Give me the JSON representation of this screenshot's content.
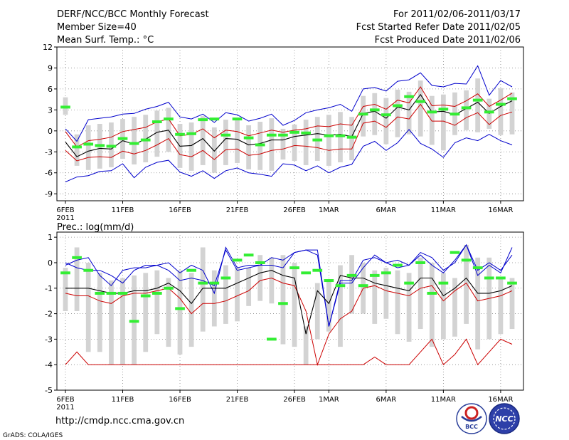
{
  "header": {
    "left_line1": "DERF/NCC/BCC Monthly Forecast",
    "left_line2": "Member Size=40",
    "left_line3": "Mean Surf. Temp.: °C",
    "right_line1": "For 2011/02/06-2011/03/17",
    "right_line2": "Fcst Started Refer Date 2011/02/05",
    "right_line3": "Fcst Produced Date 2011/02/06"
  },
  "footer": {
    "url": "http://cmdp.ncc.cma.gov.cn",
    "credit": "GrADS: COLA/IGES",
    "bcc_logo_text": "BCC",
    "ncc_logo_text": "NCC"
  },
  "colors": {
    "mean": "#000000",
    "spread": "#cc0000",
    "extreme": "#0000cc",
    "box": "#d3d3d3",
    "obs": "#33ee33",
    "grid": "#888888"
  },
  "chart_data": [
    {
      "type": "line",
      "title": "Mean Surf. Temp.: °C",
      "ylim": [
        -10,
        12
      ],
      "yticks": [
        -9,
        -6,
        -3,
        0,
        3,
        6,
        9,
        12
      ],
      "ytick_labels": [
        "-9",
        "-6",
        "-3",
        "0",
        "3",
        "6",
        "9",
        "12"
      ],
      "xticks": [
        0,
        5,
        10,
        15,
        20,
        23,
        28,
        33,
        38
      ],
      "xtick_labels": [
        "6FEB",
        "11FEB",
        "16FEB",
        "21FEB",
        "26FEB",
        "1MAR",
        "6MAR",
        "11MAR",
        "16MAR"
      ],
      "x_year_label": "2011",
      "n_days": 40,
      "series": [
        {
          "name": "max",
          "role": "extreme",
          "values": [
            -7.3,
            -6.6,
            -6.4,
            -5.8,
            -5.7,
            -4.7,
            -6.7,
            -5.2,
            -4.5,
            -4.2,
            -5.9,
            -6.5,
            -5.7,
            -6.8,
            -5.7,
            -5.3,
            -6.0,
            -6.2,
            -6.5,
            -4.7,
            -4.9,
            -5.7,
            -5.0,
            -6.0,
            -5.2,
            -4.8,
            -2.2,
            -1.5,
            -2.8,
            -1.7,
            0.2,
            -1.8,
            -2.6,
            -3.8,
            -1.7,
            -1.0,
            -1.4,
            -0.5,
            -1.4,
            -2.0
          ]
        },
        {
          "name": "upper-max",
          "role": "extreme",
          "values": [
            0.3,
            -1.5,
            1.6,
            1.8,
            2.0,
            2.4,
            2.5,
            3.1,
            3.5,
            4.1,
            2.0,
            1.7,
            2.4,
            1.2,
            2.6,
            2.3,
            1.4,
            1.8,
            2.4,
            0.8,
            1.5,
            2.6,
            3.0,
            3.3,
            3.8,
            2.8,
            6.0,
            6.2,
            5.7,
            7.1,
            7.3,
            8.3,
            6.5,
            6.3,
            6.8,
            6.7,
            9.3,
            5.1,
            7.2,
            6.3
          ]
        },
        {
          "name": "p75",
          "role": "spread",
          "values": [
            -0.1,
            -2.3,
            -1.4,
            -1.2,
            -0.9,
            -0.1,
            0.2,
            0.5,
            1.3,
            1.7,
            -0.7,
            -0.5,
            0.3,
            -1.0,
            0.1,
            -0.1,
            -0.7,
            -0.3,
            0.1,
            -0.2,
            0.1,
            0.3,
            0.7,
            0.6,
            1.0,
            0.8,
            3.5,
            3.8,
            3.1,
            4.4,
            4.0,
            6.3,
            3.6,
            3.7,
            3.5,
            4.3,
            5.3,
            3.5,
            4.4,
            5.4
          ]
        },
        {
          "name": "mean",
          "role": "mean",
          "values": [
            -1.6,
            -3.7,
            -2.9,
            -2.5,
            -2.6,
            -1.4,
            -1.9,
            -1.2,
            -0.2,
            0.1,
            -2.2,
            -2.1,
            -1.1,
            -2.9,
            -1.1,
            -1.2,
            -2.0,
            -1.8,
            -1.3,
            -1.3,
            -0.8,
            -0.6,
            -0.4,
            -0.6,
            -0.5,
            -0.8,
            2.5,
            2.8,
            1.8,
            3.4,
            3.0,
            5.2,
            2.7,
            2.8,
            2.3,
            3.2,
            4.1,
            2.5,
            3.5,
            4.3
          ]
        },
        {
          "name": "p25",
          "role": "spread",
          "values": [
            -2.8,
            -4.3,
            -3.8,
            -3.7,
            -3.8,
            -2.9,
            -3.3,
            -2.8,
            -2.0,
            -1.1,
            -3.4,
            -3.7,
            -2.8,
            -4.1,
            -2.7,
            -2.6,
            -3.5,
            -3.3,
            -2.8,
            -2.6,
            -2.1,
            -2.2,
            -2.4,
            -2.8,
            -2.6,
            -2.6,
            1.1,
            1.4,
            0.5,
            2.0,
            1.7,
            3.8,
            1.4,
            1.4,
            0.8,
            1.9,
            2.6,
            0.9,
            2.2,
            2.7
          ]
        },
        {
          "name": "observed",
          "role": "obs",
          "values": [
            3.4,
            -2.3,
            -1.9,
            -2.1,
            -2.2,
            -1.1,
            -1.8,
            -1.3,
            1.3,
            1.7,
            -0.5,
            -0.4,
            1.6,
            1.7,
            -0.6,
            1.7,
            -1.0,
            -2.0,
            -0.6,
            -0.6,
            -0.2,
            -0.3,
            -1.3,
            -0.7,
            -0.7,
            -0.9,
            2.4,
            3.0,
            2.3,
            3.6,
            4.9,
            4.2,
            2.7,
            3.1,
            2.4,
            3.3,
            4.4,
            2.7,
            3.8,
            4.6
          ]
        },
        {
          "name": "box_top",
          "role": "box",
          "values": [
            4.8,
            -0.5,
            0.8,
            1.0,
            1.2,
            1.7,
            2.0,
            2.3,
            2.9,
            3.3,
            1.0,
            1.2,
            2.1,
            0.5,
            1.6,
            1.5,
            0.8,
            1.3,
            1.8,
            0.3,
            0.9,
            1.6,
            2.0,
            2.3,
            2.7,
            2.0,
            5.0,
            5.4,
            4.7,
            5.9,
            5.6,
            7.2,
            5.0,
            5.2,
            5.5,
            5.8,
            7.5,
            4.6,
            6.1,
            5.5
          ]
        },
        {
          "name": "box_bottom",
          "role": "box",
          "values": [
            2.3,
            -5.0,
            -5.6,
            -5.4,
            -5.2,
            -4.0,
            -4.8,
            -4.5,
            -3.7,
            -3.0,
            -5.3,
            -5.7,
            -4.9,
            -6.0,
            -4.9,
            -4.6,
            -5.5,
            -5.6,
            -5.7,
            -4.1,
            -4.3,
            -4.9,
            -4.3,
            -5.0,
            -4.5,
            -4.2,
            -0.8,
            -0.6,
            -1.9,
            -0.9,
            -0.5,
            -0.8,
            -2.0,
            -2.8,
            -0.6,
            0.1,
            -0.2,
            0.3,
            -0.6,
            -0.5
          ]
        }
      ]
    },
    {
      "type": "line",
      "title": "Prec.: log(mm/d)",
      "ylim": [
        -5,
        1.2
      ],
      "yticks": [
        -5,
        -4,
        -3,
        -2,
        -1,
        0,
        1
      ],
      "ytick_labels": [
        "-5",
        "-4",
        "-3",
        "-2",
        "-1",
        "0",
        "1"
      ],
      "xticks": [
        0,
        5,
        10,
        15,
        20,
        23,
        28,
        33,
        38
      ],
      "xtick_labels": [
        "6FEB",
        "11FEB",
        "16FEB",
        "21FEB",
        "26FEB",
        "1MAR",
        "6MAR",
        "11MAR",
        "16MAR"
      ],
      "x_year_label": "2011",
      "n_days": 40,
      "series": [
        {
          "name": "max",
          "role": "extreme",
          "values": [
            0.0,
            -0.2,
            -0.3,
            -0.3,
            -0.5,
            -0.8,
            -0.3,
            -0.1,
            -0.1,
            0.0,
            -0.4,
            -0.1,
            -0.3,
            -1.2,
            0.6,
            -0.2,
            -0.1,
            -0.1,
            0.2,
            0.1,
            0.4,
            0.5,
            0.5,
            -2.5,
            -0.7,
            -0.7,
            0.1,
            0.2,
            0.0,
            0.1,
            -0.1,
            0.4,
            0.2,
            -0.3,
            0.0,
            0.7,
            -0.3,
            0.0,
            -0.3,
            0.3
          ]
        },
        {
          "name": "upper-max",
          "role": "extreme",
          "values": [
            -0.1,
            0.1,
            0.2,
            -0.5,
            -0.9,
            -0.3,
            -0.2,
            -0.2,
            -0.1,
            -0.3,
            -0.7,
            -0.6,
            -0.7,
            -0.9,
            0.5,
            -0.3,
            -0.2,
            -0.1,
            -0.1,
            -0.2,
            0.4,
            0.5,
            0.3,
            -2.5,
            -0.8,
            -0.8,
            -0.2,
            0.3,
            0.0,
            -0.2,
            -0.1,
            0.3,
            -0.1,
            -0.4,
            0.1,
            0.7,
            -0.5,
            -0.1,
            -0.4,
            0.6
          ]
        },
        {
          "name": "p75",
          "role": "spread",
          "values": [
            -1.2,
            -1.3,
            -1.3,
            -1.5,
            -1.6,
            -1.3,
            -1.2,
            -1.2,
            -1.1,
            -1.0,
            -1.4,
            -2.0,
            -1.6,
            -1.6,
            -1.5,
            -1.3,
            -1.1,
            -0.7,
            -0.6,
            -0.8,
            -0.9,
            -1.9,
            -4.0,
            -2.8,
            -2.2,
            -1.9,
            -1.0,
            -0.9,
            -1.1,
            -1.2,
            -1.3,
            -1.0,
            -0.9,
            -1.5,
            -1.1,
            -0.8,
            -1.5,
            -1.4,
            -1.3,
            -1.1
          ]
        },
        {
          "name": "mean",
          "role": "mean",
          "values": [
            -1.0,
            -1.0,
            -1.0,
            -1.1,
            -1.2,
            -1.2,
            -1.1,
            -1.1,
            -1.0,
            -0.8,
            -1.1,
            -1.6,
            -1.0,
            -1.0,
            -1.0,
            -0.8,
            -0.6,
            -0.4,
            -0.3,
            -0.5,
            -0.6,
            -2.8,
            -1.1,
            -1.6,
            -0.5,
            -0.6,
            -0.6,
            -0.8,
            -0.9,
            -1.0,
            -1.1,
            -0.6,
            -0.6,
            -1.3,
            -1.0,
            -0.6,
            -1.2,
            -1.2,
            -1.1,
            -0.9
          ]
        },
        {
          "name": "p25",
          "role": "spread",
          "values": [
            -4.0,
            -3.5,
            -4.0,
            -4.0,
            -4.0,
            -4.0,
            -4.0,
            -4.0,
            -4.0,
            -4.0,
            -4.0,
            -4.0,
            -4.0,
            -4.0,
            -4.0,
            -4.0,
            -4.0,
            -4.0,
            -4.0,
            -4.0,
            -4.0,
            -4.0,
            -4.0,
            -4.0,
            -4.0,
            -4.0,
            -4.0,
            -3.7,
            -4.0,
            -4.0,
            -4.0,
            -3.5,
            -3.0,
            -4.0,
            -3.6,
            -3.0,
            -4.0,
            -3.5,
            -3.0,
            -3.2
          ]
        },
        {
          "name": "observed",
          "role": "obs",
          "values": [
            -0.4,
            0.2,
            -0.3,
            -1.2,
            -1.2,
            -1.2,
            -2.3,
            -1.3,
            -1.2,
            -1.0,
            -1.8,
            -0.3,
            -0.8,
            -0.8,
            -0.6,
            0.1,
            0.3,
            0.0,
            -3.0,
            -1.6,
            -0.2,
            -0.4,
            -0.3,
            -0.7,
            -0.9,
            -0.5,
            -0.9,
            -0.5,
            -0.4,
            -0.1,
            -0.8,
            0.0,
            -1.2,
            -0.8,
            0.4,
            0.1,
            -0.2,
            -0.6,
            -0.6,
            -0.8
          ]
        },
        {
          "name": "box_top",
          "role": "box",
          "values": [
            -0.2,
            0.6,
            0.0,
            -0.4,
            -0.7,
            -0.6,
            -0.5,
            -0.4,
            -0.3,
            -0.6,
            -0.3,
            -0.4,
            0.6,
            -0.3,
            -0.1,
            -0.2,
            -0.2,
            0.3,
            0.2,
            0.3,
            0.0,
            -2.5,
            -0.8,
            -0.7,
            -0.1,
            0.3,
            0.0,
            -0.3,
            -0.2,
            -0.3,
            -0.4,
            0.2,
            0.0,
            -0.4,
            -0.6,
            0.7,
            0.2,
            0.2,
            -0.6,
            -0.6
          ]
        },
        {
          "name": "box_bottom",
          "role": "box",
          "values": [
            -1.9,
            -1.9,
            -3.5,
            -3.5,
            -4.0,
            -4.0,
            -4.0,
            -3.5,
            -2.8,
            -3.3,
            -3.6,
            -3.3,
            -2.7,
            -2.5,
            -2.4,
            -2.3,
            -1.7,
            -1.5,
            -1.6,
            -3.2,
            -3.3,
            -4.0,
            -3.0,
            -2.7,
            -3.3,
            -2.0,
            -2.0,
            -2.4,
            -2.2,
            -2.8,
            -3.1,
            -2.6,
            -3.3,
            -3.0,
            -2.9,
            -2.4,
            -3.4,
            -3.0,
            -2.8,
            -2.6
          ]
        }
      ]
    }
  ]
}
